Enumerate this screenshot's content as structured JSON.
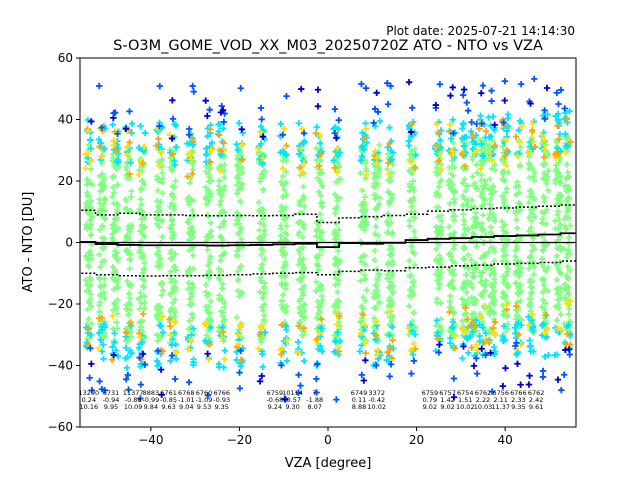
{
  "chart_data": {
    "type": "scatter",
    "title": "S-O3M_GOME_VOD_XX_M03_20250720Z ATO - NTO vs VZA",
    "subtitle": "Plot date: 2025-07-21 14:14:30",
    "xlabel": "VZA [degree]",
    "ylabel": "ATO - NTO [DU]",
    "xlim": [
      -56,
      56
    ],
    "ylim": [
      -60,
      60
    ],
    "xticks": [
      -40,
      -20,
      0,
      20,
      40
    ],
    "yticks": [
      -60,
      -40,
      -20,
      0,
      20,
      40,
      60
    ],
    "xtick_labels": [
      "−40",
      "−20",
      "0",
      "20",
      "40"
    ],
    "ytick_labels": [
      "−60",
      "−40",
      "−20",
      "0",
      "20",
      "40",
      "60"
    ],
    "grid": false,
    "legend": "none",
    "colors": {
      "dense": "#80ff80",
      "mid": "#00e5ff",
      "yellow": "#ffe000",
      "orange": "#ffa500",
      "blue": "#0055ff",
      "dark_blue": "#0000cc",
      "zero_line": "#000000"
    },
    "columns_x": [
      -54,
      -51,
      -48,
      -45,
      -42,
      -38,
      -35,
      -31,
      -27,
      -24,
      -20,
      -15,
      -10,
      -6,
      -2,
      2,
      8,
      11,
      14,
      19,
      25,
      28,
      31,
      33,
      35,
      37,
      40,
      43,
      46,
      49,
      52,
      54
    ],
    "mean_line": {
      "x": [
        -55,
        -50,
        -45,
        -40,
        -35,
        -30,
        -25,
        -20,
        -15,
        -10,
        -5,
        0,
        5,
        10,
        15,
        20,
        25,
        30,
        35,
        40,
        45,
        50,
        55
      ],
      "y": [
        0.2,
        -0.5,
        -0.8,
        -0.9,
        -0.9,
        -0.9,
        -1.0,
        -0.9,
        -0.8,
        -0.6,
        -0.4,
        -1.5,
        -0.2,
        -0.4,
        -0.1,
        0.8,
        1.2,
        1.4,
        1.8,
        2.1,
        2.3,
        2.6,
        3.0
      ]
    },
    "upper_line": {
      "x": [
        -55,
        -50,
        -45,
        -40,
        -35,
        -30,
        -25,
        -20,
        -15,
        -10,
        -5,
        0,
        5,
        10,
        15,
        20,
        25,
        30,
        35,
        40,
        45,
        50,
        55
      ],
      "y": [
        10.5,
        9.0,
        9.5,
        9.0,
        9.0,
        8.8,
        8.7,
        8.8,
        8.7,
        8.8,
        9.2,
        6.5,
        8.0,
        8.4,
        8.8,
        9.2,
        10.2,
        10.6,
        11.0,
        11.2,
        11.5,
        11.8,
        12.2
      ]
    },
    "lower_line": {
      "x": [
        -55,
        -50,
        -45,
        -40,
        -35,
        -30,
        -25,
        -20,
        -15,
        -10,
        -5,
        0,
        5,
        10,
        15,
        20,
        25,
        30,
        35,
        40,
        45,
        50,
        55
      ],
      "y": [
        -10.0,
        -10.5,
        -10.8,
        -10.9,
        -10.8,
        -10.8,
        -10.7,
        -10.5,
        -10.2,
        -10.0,
        -9.8,
        -10.5,
        -9.4,
        -9.0,
        -9.2,
        -8.2,
        -8.0,
        -7.6,
        -7.4,
        -7.0,
        -6.8,
        -6.5,
        -6.0
      ]
    },
    "stats_table": [
      {
        "x": -54,
        "count": "13290",
        "mean": "0.24",
        "std": "10.16"
      },
      {
        "x": -49,
        "count": "6731",
        "mean": "-0.94",
        "std": "9.95"
      },
      {
        "x": -44,
        "count": "11377",
        "mean": "-0.88",
        "std": "10.09"
      },
      {
        "x": -40,
        "count": "8883",
        "mean": "-0.99",
        "std": "9.84"
      },
      {
        "x": -36,
        "count": "6761",
        "mean": "-0.85",
        "std": "9.63"
      },
      {
        "x": -32,
        "count": "6768",
        "mean": "-1.01",
        "std": "9.04"
      },
      {
        "x": -28,
        "count": "6760",
        "mean": "-1.09",
        "std": "9.53"
      },
      {
        "x": -24,
        "count": "6766",
        "mean": "-0.93",
        "std": "9.35"
      },
      {
        "x": -12,
        "count": "6759",
        "mean": "-0.68",
        "std": "9.24"
      },
      {
        "x": -8,
        "count": "10114",
        "mean": "-0.57",
        "std": "9.30"
      },
      {
        "x": -3,
        "count": "7",
        "mean": "-1.88",
        "std": "8.07"
      },
      {
        "x": 7,
        "count": "6749",
        "mean": "0.11",
        "std": "8.88"
      },
      {
        "x": 11,
        "count": "3372",
        "mean": "-0.42",
        "std": "10.02"
      },
      {
        "x": 23,
        "count": "6759",
        "mean": "0.79",
        "std": "9.02"
      },
      {
        "x": 27,
        "count": "6757",
        "mean": "1.42",
        "std": "9.02"
      },
      {
        "x": 31,
        "count": "6754",
        "mean": "1.51",
        "std": "10.02"
      },
      {
        "x": 35,
        "count": "6762",
        "mean": "2.22",
        "std": "10.03"
      },
      {
        "x": 39,
        "count": "6756",
        "mean": "2.11",
        "std": "11.37"
      },
      {
        "x": 43,
        "count": "6766",
        "mean": "2.33",
        "std": "9.35"
      },
      {
        "x": 47,
        "count": "6762",
        "mean": "2.42",
        "std": "9.61"
      }
    ]
  }
}
